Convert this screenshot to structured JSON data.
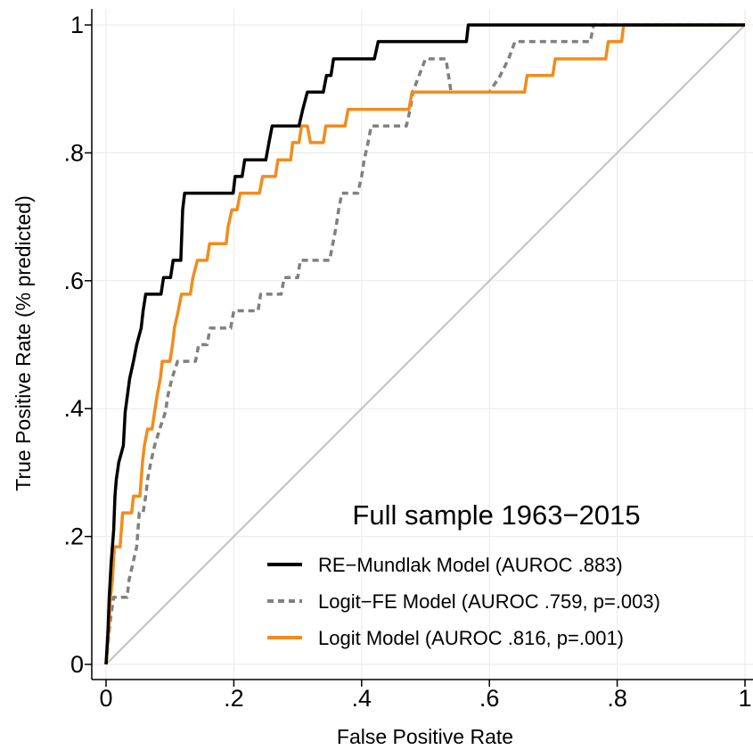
{
  "chart_data": {
    "type": "line",
    "title": "",
    "annotation": "Full sample 1963−2015",
    "xlabel": "False Positive Rate",
    "ylabel": "True Positive Rate (% predicted)",
    "xlim": [
      0,
      1
    ],
    "ylim": [
      0,
      1
    ],
    "xticks": [
      {
        "value": 0,
        "label": "0"
      },
      {
        "value": 0.2,
        "label": ".2"
      },
      {
        "value": 0.4,
        "label": ".4"
      },
      {
        "value": 0.6,
        "label": ".6"
      },
      {
        "value": 0.8,
        "label": ".8"
      },
      {
        "value": 1,
        "label": "1"
      }
    ],
    "yticks": [
      {
        "value": 0,
        "label": "0"
      },
      {
        "value": 0.2,
        "label": ".2"
      },
      {
        "value": 0.4,
        "label": ".4"
      },
      {
        "value": 0.6,
        "label": ".6"
      },
      {
        "value": 0.8,
        "label": ".8"
      },
      {
        "value": 1,
        "label": "1"
      }
    ],
    "grid": true,
    "legend_position": "bottom-right",
    "series": [
      {
        "name": "RE−Mundlak Model (AUROC .883)",
        "color": "#000000",
        "dash": "solid",
        "points": [
          [
            0,
            0
          ],
          [
            0.003,
            0.053
          ],
          [
            0.005,
            0.105
          ],
          [
            0.008,
            0.158
          ],
          [
            0.012,
            0.211
          ],
          [
            0.014,
            0.263
          ],
          [
            0.016,
            0.289
          ],
          [
            0.02,
            0.316
          ],
          [
            0.027,
            0.342
          ],
          [
            0.03,
            0.395
          ],
          [
            0.037,
            0.447
          ],
          [
            0.043,
            0.474
          ],
          [
            0.048,
            0.5
          ],
          [
            0.055,
            0.526
          ],
          [
            0.058,
            0.553
          ],
          [
            0.062,
            0.579
          ],
          [
            0.086,
            0.579
          ],
          [
            0.09,
            0.605
          ],
          [
            0.101,
            0.605
          ],
          [
            0.105,
            0.632
          ],
          [
            0.117,
            0.632
          ],
          [
            0.12,
            0.711
          ],
          [
            0.123,
            0.737
          ],
          [
            0.199,
            0.737
          ],
          [
            0.202,
            0.763
          ],
          [
            0.213,
            0.763
          ],
          [
            0.217,
            0.789
          ],
          [
            0.25,
            0.789
          ],
          [
            0.255,
            0.816
          ],
          [
            0.26,
            0.842
          ],
          [
            0.302,
            0.842
          ],
          [
            0.308,
            0.868
          ],
          [
            0.315,
            0.895
          ],
          [
            0.34,
            0.895
          ],
          [
            0.345,
            0.921
          ],
          [
            0.352,
            0.921
          ],
          [
            0.356,
            0.947
          ],
          [
            0.42,
            0.947
          ],
          [
            0.426,
            0.974
          ],
          [
            0.564,
            0.974
          ],
          [
            0.567,
            1
          ],
          [
            1,
            1
          ]
        ]
      },
      {
        "name": "Logit−FE Model (AUROC .759, p=.003)",
        "color": "#808080",
        "dash": "dashed",
        "points": [
          [
            0,
            0
          ],
          [
            0.005,
            0.053
          ],
          [
            0.008,
            0.079
          ],
          [
            0.012,
            0.105
          ],
          [
            0.033,
            0.105
          ],
          [
            0.036,
            0.132
          ],
          [
            0.042,
            0.158
          ],
          [
            0.048,
            0.184
          ],
          [
            0.052,
            0.237
          ],
          [
            0.058,
            0.237
          ],
          [
            0.062,
            0.263
          ],
          [
            0.065,
            0.289
          ],
          [
            0.07,
            0.316
          ],
          [
            0.076,
            0.342
          ],
          [
            0.084,
            0.368
          ],
          [
            0.093,
            0.395
          ],
          [
            0.097,
            0.421
          ],
          [
            0.103,
            0.447
          ],
          [
            0.112,
            0.474
          ],
          [
            0.14,
            0.474
          ],
          [
            0.145,
            0.5
          ],
          [
            0.158,
            0.5
          ],
          [
            0.163,
            0.526
          ],
          [
            0.195,
            0.526
          ],
          [
            0.2,
            0.553
          ],
          [
            0.238,
            0.553
          ],
          [
            0.242,
            0.579
          ],
          [
            0.274,
            0.579
          ],
          [
            0.279,
            0.605
          ],
          [
            0.3,
            0.605
          ],
          [
            0.304,
            0.632
          ],
          [
            0.35,
            0.632
          ],
          [
            0.355,
            0.658
          ],
          [
            0.36,
            0.684
          ],
          [
            0.364,
            0.711
          ],
          [
            0.369,
            0.737
          ],
          [
            0.394,
            0.737
          ],
          [
            0.4,
            0.763
          ],
          [
            0.404,
            0.789
          ],
          [
            0.41,
            0.816
          ],
          [
            0.415,
            0.842
          ],
          [
            0.47,
            0.842
          ],
          [
            0.476,
            0.868
          ],
          [
            0.48,
            0.895
          ],
          [
            0.49,
            0.921
          ],
          [
            0.5,
            0.947
          ],
          [
            0.532,
            0.947
          ],
          [
            0.54,
            0.895
          ],
          [
            0.6,
            0.895
          ],
          [
            0.617,
            0.921
          ],
          [
            0.63,
            0.947
          ],
          [
            0.64,
            0.974
          ],
          [
            0.758,
            0.974
          ],
          [
            0.763,
            1
          ],
          [
            1,
            1
          ]
        ]
      },
      {
        "name": "Logit Model (AUROC .816, p=.001)",
        "color": "#f28c1c",
        "dash": "solid",
        "points": [
          [
            0,
            0
          ],
          [
            0.004,
            0.053
          ],
          [
            0.007,
            0.105
          ],
          [
            0.01,
            0.132
          ],
          [
            0.013,
            0.184
          ],
          [
            0.022,
            0.184
          ],
          [
            0.026,
            0.237
          ],
          [
            0.04,
            0.237
          ],
          [
            0.043,
            0.263
          ],
          [
            0.053,
            0.263
          ],
          [
            0.057,
            0.316
          ],
          [
            0.06,
            0.342
          ],
          [
            0.065,
            0.368
          ],
          [
            0.072,
            0.368
          ],
          [
            0.076,
            0.395
          ],
          [
            0.08,
            0.421
          ],
          [
            0.085,
            0.447
          ],
          [
            0.088,
            0.474
          ],
          [
            0.1,
            0.474
          ],
          [
            0.104,
            0.5
          ],
          [
            0.107,
            0.526
          ],
          [
            0.113,
            0.553
          ],
          [
            0.118,
            0.579
          ],
          [
            0.132,
            0.579
          ],
          [
            0.136,
            0.605
          ],
          [
            0.143,
            0.632
          ],
          [
            0.158,
            0.632
          ],
          [
            0.162,
            0.658
          ],
          [
            0.188,
            0.658
          ],
          [
            0.191,
            0.684
          ],
          [
            0.197,
            0.711
          ],
          [
            0.205,
            0.711
          ],
          [
            0.21,
            0.737
          ],
          [
            0.24,
            0.737
          ],
          [
            0.245,
            0.763
          ],
          [
            0.265,
            0.763
          ],
          [
            0.269,
            0.789
          ],
          [
            0.289,
            0.789
          ],
          [
            0.292,
            0.816
          ],
          [
            0.302,
            0.816
          ],
          [
            0.306,
            0.842
          ],
          [
            0.315,
            0.842
          ],
          [
            0.32,
            0.816
          ],
          [
            0.34,
            0.816
          ],
          [
            0.344,
            0.842
          ],
          [
            0.374,
            0.842
          ],
          [
            0.379,
            0.868
          ],
          [
            0.474,
            0.868
          ],
          [
            0.479,
            0.895
          ],
          [
            0.655,
            0.895
          ],
          [
            0.659,
            0.921
          ],
          [
            0.699,
            0.921
          ],
          [
            0.703,
            0.947
          ],
          [
            0.782,
            0.947
          ],
          [
            0.786,
            0.974
          ],
          [
            0.807,
            0.974
          ],
          [
            0.81,
            1
          ],
          [
            1,
            1
          ]
        ]
      },
      {
        "name": "",
        "color": "#c0c0c0",
        "dash": "solid",
        "points": [
          [
            0,
            0
          ],
          [
            1,
            1
          ]
        ]
      }
    ]
  }
}
